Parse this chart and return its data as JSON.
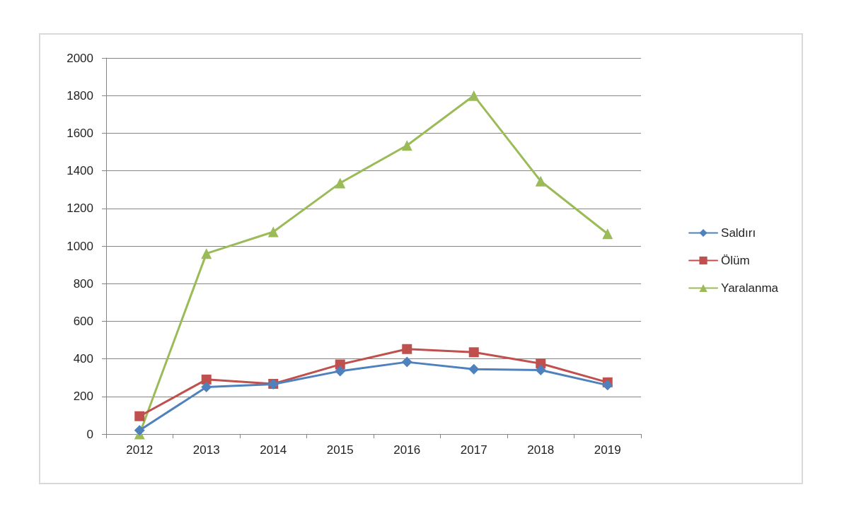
{
  "chart_data": {
    "type": "line",
    "categories": [
      "2012",
      "2013",
      "2014",
      "2015",
      "2016",
      "2017",
      "2018",
      "2019"
    ],
    "series": [
      {
        "name": "Saldırı",
        "color": "#4f81bd",
        "marker": "diamond",
        "values": [
          20,
          250,
          265,
          335,
          383,
          345,
          340,
          260
        ]
      },
      {
        "name": "Ölüm",
        "color": "#c0504d",
        "marker": "square",
        "values": [
          95,
          290,
          267,
          370,
          452,
          435,
          375,
          275
        ]
      },
      {
        "name": "Yaralanma",
        "color": "#9bbb59",
        "marker": "triangle",
        "values": [
          0,
          960,
          1075,
          1335,
          1535,
          1800,
          1345,
          1065
        ]
      }
    ],
    "ylim": [
      0,
      2000
    ],
    "yticks": [
      0,
      200,
      400,
      600,
      800,
      1000,
      1200,
      1400,
      1600,
      1800,
      2000
    ],
    "grid": "y",
    "legend": "right",
    "line_style": "solid"
  }
}
